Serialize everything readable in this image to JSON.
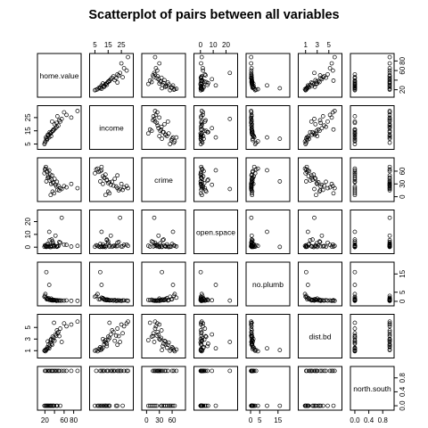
{
  "chart_data": {
    "type": "scatter-matrix",
    "title": "Scatterplot of pairs between all variables",
    "variables": [
      "home.value",
      "income",
      "crime",
      "open.space",
      "no.plumb",
      "dist.bd",
      "north.south"
    ],
    "axes": {
      "home.value": {
        "range": [
          10,
          90
        ],
        "ticks": [
          20,
          40,
          60,
          80
        ],
        "tick_labels": [
          "20",
          "",
          "60",
          "80"
        ]
      },
      "income": {
        "range": [
          3,
          32
        ],
        "ticks": [
          5,
          15,
          25
        ],
        "tick_labels": [
          "5",
          "15",
          "25"
        ]
      },
      "crime": {
        "range": [
          -5,
          85
        ],
        "ticks": [
          0,
          30,
          60
        ],
        "tick_labels": [
          "0",
          "30",
          "60"
        ]
      },
      "open.space": {
        "range": [
          -3,
          27
        ],
        "ticks": [
          0,
          10,
          20
        ],
        "tick_labels": [
          "0",
          "10",
          "20"
        ]
      },
      "no.plumb": {
        "range": [
          -1,
          20
        ],
        "ticks": [
          0,
          5,
          15
        ],
        "tick_labels": [
          "0",
          "5",
          "15"
        ]
      },
      "dist.bd": {
        "range": [
          0.2,
          6.8
        ],
        "ticks": [
          1,
          3,
          5
        ],
        "tick_labels": [
          "1",
          "3",
          "5"
        ]
      },
      "north.south": {
        "range": [
          -0.05,
          1.05
        ],
        "ticks": [
          0,
          0.4,
          0.8
        ],
        "tick_labels": [
          "0.0",
          "0.4",
          "0.8"
        ]
      }
    },
    "tick_axes": {
      "top": [
        "income",
        "open.space",
        "dist.bd"
      ],
      "bottom": [
        "home.value",
        "crime",
        "no.plumb",
        "north.south"
      ],
      "left": [
        "income",
        "open.space",
        "dist.bd"
      ],
      "right": [
        "home.value",
        "crime",
        "no.plumb",
        "north.south"
      ]
    },
    "observations": [
      {
        "home.value": 75,
        "income": 25,
        "crime": 30,
        "open.space": 0.5,
        "no.plumb": 0.3,
        "dist.bd": 5.5,
        "north.south": 1
      },
      {
        "home.value": 60,
        "income": 29,
        "crime": 25,
        "open.space": 2.0,
        "no.plumb": 0.4,
        "dist.bd": 5.7,
        "north.south": 1
      },
      {
        "home.value": 50,
        "income": 23,
        "crime": 15,
        "open.space": 4.0,
        "no.plumb": 0.5,
        "dist.bd": 3.5,
        "north.south": 1
      },
      {
        "home.value": 88,
        "income": 30,
        "crime": 20,
        "open.space": 1.0,
        "no.plumb": 0.3,
        "dist.bd": 6.0,
        "north.south": 1
      },
      {
        "home.value": 45,
        "income": 18,
        "crime": 35,
        "open.space": 0.3,
        "no.plumb": 0.6,
        "dist.bd": 4.5,
        "north.south": 1
      },
      {
        "home.value": 40,
        "income": 20,
        "crime": 42,
        "open.space": 1.2,
        "no.plumb": 0.7,
        "dist.bd": 2.7,
        "north.south": 1
      },
      {
        "home.value": 35,
        "income": 22,
        "crime": 50,
        "open.space": 0.8,
        "no.plumb": 0.5,
        "dist.bd": 2.0,
        "north.south": 1
      },
      {
        "home.value": 30,
        "income": 14,
        "crime": 38,
        "open.space": 5.5,
        "no.plumb": 1.0,
        "dist.bd": 1.8,
        "north.south": 1
      },
      {
        "home.value": 25,
        "income": 9,
        "crime": 60,
        "open.space": 2.5,
        "no.plumb": 1.2,
        "dist.bd": 1.6,
        "north.south": 1
      },
      {
        "home.value": 55,
        "income": 24,
        "crime": 18,
        "open.space": 23.0,
        "no.plumb": 0.4,
        "dist.bd": 2.5,
        "north.south": 1
      },
      {
        "home.value": 33,
        "income": 11,
        "crime": 30,
        "open.space": 0.2,
        "no.plumb": 1.5,
        "dist.bd": 3.0,
        "north.south": 1
      },
      {
        "home.value": 22,
        "income": 10,
        "crime": 70,
        "open.space": 0.6,
        "no.plumb": 2.0,
        "dist.bd": 1.2,
        "north.south": 1
      },
      {
        "home.value": 28,
        "income": 12,
        "crime": 45,
        "open.space": 0.4,
        "no.plumb": 0.9,
        "dist.bd": 2.1,
        "north.south": 1
      },
      {
        "home.value": 20,
        "income": 6,
        "crime": 64,
        "open.space": 1.5,
        "no.plumb": 3.0,
        "dist.bd": 1.1,
        "north.south": 1
      },
      {
        "home.value": 42,
        "income": 17,
        "crime": 28,
        "open.space": 9.0,
        "no.plumb": 0.6,
        "dist.bd": 3.8,
        "north.south": 1
      },
      {
        "home.value": 37,
        "income": 15,
        "crime": 32,
        "open.space": 3.0,
        "no.plumb": 0.8,
        "dist.bd": 2.9,
        "north.south": 1
      },
      {
        "home.value": 65,
        "income": 27,
        "crime": 22,
        "open.space": 1.8,
        "no.plumb": 0.5,
        "dist.bd": 5.2,
        "north.south": 1
      },
      {
        "home.value": 48,
        "income": 19,
        "crime": 26,
        "open.space": 0.9,
        "no.plumb": 0.4,
        "dist.bd": 4.2,
        "north.south": 1
      },
      {
        "home.value": 31,
        "income": 13,
        "crime": 52,
        "open.space": 0.1,
        "no.plumb": 0.7,
        "dist.bd": 2.4,
        "north.south": 0
      },
      {
        "home.value": 27,
        "income": 11,
        "crime": 48,
        "open.space": 2.2,
        "no.plumb": 1.8,
        "dist.bd": 1.5,
        "north.south": 0
      },
      {
        "home.value": 24,
        "income": 8,
        "crime": 58,
        "open.space": 0.5,
        "no.plumb": 1.1,
        "dist.bd": 1.3,
        "north.south": 0
      },
      {
        "home.value": 21,
        "income": 7,
        "crime": 66,
        "open.space": 1.0,
        "no.plumb": 4.0,
        "dist.bd": 0.9,
        "north.south": 0
      },
      {
        "home.value": 19,
        "income": 5,
        "crime": 55,
        "open.space": 0.3,
        "no.plumb": 2.5,
        "dist.bd": 1.0,
        "north.south": 0
      },
      {
        "home.value": 34,
        "income": 14,
        "crime": 40,
        "open.space": 6.0,
        "no.plumb": 0.6,
        "dist.bd": 2.2,
        "north.south": 0
      },
      {
        "home.value": 38,
        "income": 16,
        "crime": 34,
        "open.space": 1.4,
        "no.plumb": 0.5,
        "dist.bd": 3.2,
        "north.south": 0
      },
      {
        "home.value": 44,
        "income": 21,
        "crime": 24,
        "open.space": 0.7,
        "no.plumb": 0.3,
        "dist.bd": 3.6,
        "north.south": 0
      },
      {
        "home.value": 29,
        "income": 10,
        "crime": 62,
        "open.space": 12.0,
        "no.plumb": 9.0,
        "dist.bd": 1.4,
        "north.south": 0
      },
      {
        "home.value": 23,
        "income": 9,
        "crime": 36,
        "open.space": 0.2,
        "no.plumb": 16.0,
        "dist.bd": 1.1,
        "north.south": 0
      },
      {
        "home.value": 52,
        "income": 22,
        "crime": 20,
        "open.space": 3.5,
        "no.plumb": 0.4,
        "dist.bd": 4.8,
        "north.south": 0
      },
      {
        "home.value": 26,
        "income": 12,
        "crime": 44,
        "open.space": 0.8,
        "no.plumb": 1.3,
        "dist.bd": 2.6,
        "north.south": 0
      },
      {
        "home.value": 36,
        "income": 15,
        "crime": 12,
        "open.space": 4.5,
        "no.plumb": 0.9,
        "dist.bd": 3.4,
        "north.south": 0
      },
      {
        "home.value": 46,
        "income": 26,
        "crime": 16,
        "open.space": 0.6,
        "no.plumb": 0.5,
        "dist.bd": 4.0,
        "north.south": 0
      },
      {
        "home.value": 32,
        "income": 13,
        "crime": 4,
        "open.space": 1.1,
        "no.plumb": 0.8,
        "dist.bd": 2.8,
        "north.south": 0
      },
      {
        "home.value": 39,
        "income": 16,
        "crime": 8,
        "open.space": 0.4,
        "no.plumb": 0.6,
        "dist.bd": 5.8,
        "north.south": 0
      }
    ]
  }
}
